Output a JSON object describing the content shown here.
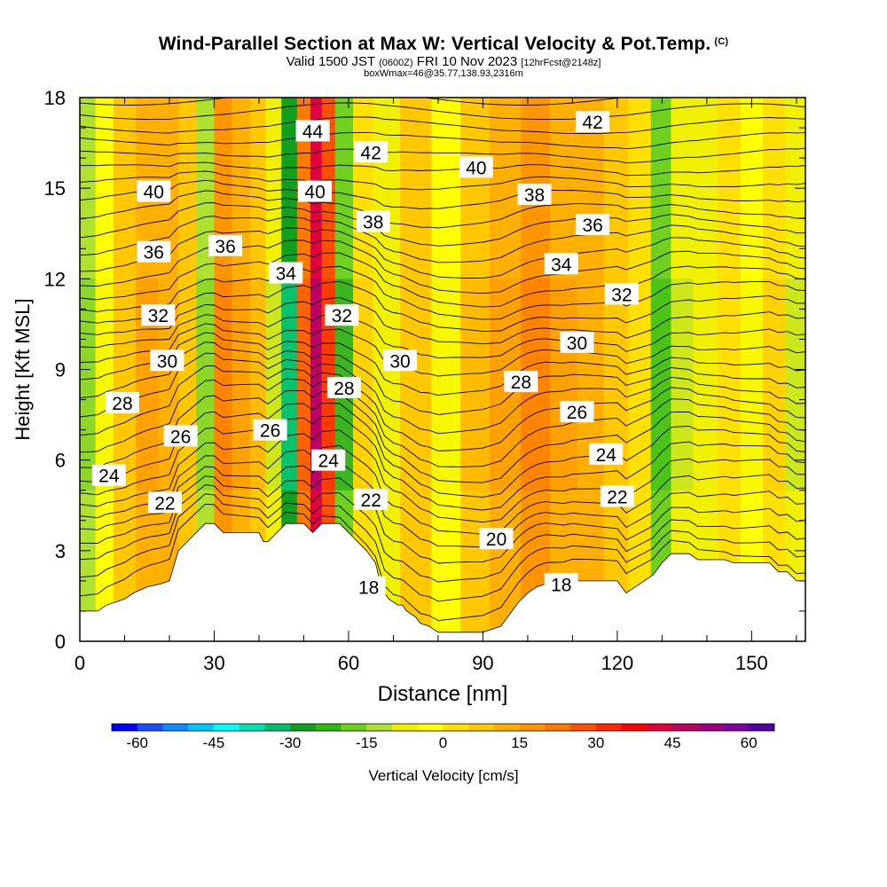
{
  "header": {
    "title": "Wind-Parallel Section at Max W: Vertical Velocity & Pot.Temp.",
    "copyright": "(C)",
    "valid_main": "Valid 1500 JST",
    "valid_utc": "(0600Z)",
    "valid_date": "FRI 10 Nov 2023",
    "forecast": "[12hrFcst@2148z]",
    "subtitle2": "boxWmax=46@35.77,138.93,2316m"
  },
  "chart_data": {
    "type": "heatmap",
    "xlabel": "Distance [nm]",
    "ylabel": "Height [Kft MSL]",
    "xlim": [
      0,
      162
    ],
    "ylim": [
      0,
      18
    ],
    "x_ticks": [
      0,
      30,
      60,
      90,
      120,
      150
    ],
    "y_ticks": [
      0,
      3,
      6,
      9,
      12,
      15,
      18
    ],
    "colorbar": {
      "label": "Vertical Velocity [cm/s]",
      "min": -65,
      "max": 65,
      "step": 5,
      "ticks": [
        -60,
        -45,
        -30,
        -15,
        0,
        15,
        30,
        45,
        60
      ],
      "colors": [
        "#0000ff",
        "#1a4cff",
        "#0c8cff",
        "#00c8ff",
        "#00ffff",
        "#00e0b0",
        "#00c070",
        "#10a020",
        "#30b810",
        "#70d020",
        "#b0e030",
        "#f0f000",
        "#ffff00",
        "#ffe000",
        "#ffc800",
        "#ffb000",
        "#ff9600",
        "#ff7800",
        "#ff5000",
        "#ff2800",
        "#ff0000",
        "#e00040",
        "#c00060",
        "#a00080",
        "#8000a0",
        "#5000a0"
      ]
    },
    "wmax": 46,
    "wmax_location": "35.77,138.93,2316m",
    "terrain": {
      "x": [
        0,
        4,
        6,
        8,
        10,
        12,
        15,
        18,
        20,
        21,
        22,
        24,
        26,
        28,
        30,
        32,
        34,
        36,
        38,
        40,
        41,
        42,
        44,
        46,
        48,
        50,
        52,
        54,
        56,
        58,
        60,
        62,
        64,
        66,
        67,
        68,
        69,
        70,
        71,
        72,
        73,
        74,
        75,
        76,
        78,
        80,
        82,
        84,
        86,
        88,
        90,
        92,
        94,
        96,
        98,
        100,
        102,
        104,
        106,
        108,
        110,
        112,
        114,
        116,
        118,
        120,
        122,
        124,
        126,
        128,
        130,
        132,
        134,
        136,
        138,
        140,
        142,
        144,
        146,
        148,
        150,
        152,
        154,
        156,
        158,
        160,
        162
      ],
      "y": [
        1.0,
        1.0,
        1.2,
        1.3,
        1.4,
        1.6,
        1.8,
        1.9,
        2.0,
        2.5,
        3.0,
        3.3,
        3.6,
        3.9,
        3.9,
        3.6,
        3.6,
        3.6,
        3.6,
        3.6,
        3.3,
        3.3,
        3.6,
        3.9,
        3.9,
        3.9,
        3.6,
        3.9,
        3.9,
        3.9,
        3.6,
        3.3,
        3.0,
        2.6,
        2.0,
        1.6,
        1.4,
        1.3,
        1.2,
        1.2,
        1.0,
        0.9,
        0.8,
        0.6,
        0.5,
        0.3,
        0.3,
        0.3,
        0.3,
        0.3,
        0.3,
        0.4,
        0.5,
        0.9,
        1.3,
        1.6,
        1.8,
        1.9,
        1.9,
        1.9,
        2.0,
        2.0,
        2.0,
        2.0,
        2.0,
        2.0,
        1.6,
        1.8,
        2.0,
        2.2,
        2.6,
        2.9,
        2.9,
        2.9,
        2.7,
        2.7,
        2.7,
        2.7,
        2.6,
        2.6,
        2.6,
        2.6,
        2.6,
        2.3,
        2.3,
        2.0,
        2.0
      ]
    },
    "w_field": {
      "columns": [
        {
          "x": 2,
          "w": -12
        },
        {
          "x": 5,
          "w": -4
        },
        {
          "x": 10,
          "w": 6
        },
        {
          "x": 15,
          "w": 12
        },
        {
          "x": 20,
          "w": 10
        },
        {
          "x": 24,
          "w": 6
        },
        {
          "x": 28,
          "w": -14
        },
        {
          "x": 32,
          "w": 18
        },
        {
          "x": 36,
          "w": 12
        },
        {
          "x": 40,
          "w": 8
        },
        {
          "x": 43,
          "w": -8
        },
        {
          "x": 47,
          "w": -30
        },
        {
          "x": 50,
          "w": 20
        },
        {
          "x": 53,
          "w": 42
        },
        {
          "x": 55,
          "w": 26
        },
        {
          "x": 59,
          "w": -20
        },
        {
          "x": 63,
          "w": 4
        },
        {
          "x": 68,
          "w": -6
        },
        {
          "x": 75,
          "w": 6
        },
        {
          "x": 82,
          "w": -4
        },
        {
          "x": 88,
          "w": 8
        },
        {
          "x": 95,
          "w": 12
        },
        {
          "x": 102,
          "w": 16
        },
        {
          "x": 108,
          "w": 14
        },
        {
          "x": 114,
          "w": 10
        },
        {
          "x": 120,
          "w": 6
        },
        {
          "x": 125,
          "w": 2
        },
        {
          "x": 130,
          "w": -16
        },
        {
          "x": 134,
          "w": -10
        },
        {
          "x": 140,
          "w": -6
        },
        {
          "x": 145,
          "w": 2
        },
        {
          "x": 150,
          "w": -4
        },
        {
          "x": 155,
          "w": 4
        },
        {
          "x": 160,
          "w": -8
        }
      ]
    },
    "theta_contours": [
      {
        "level": 18,
        "label": "18",
        "label_x": 64.5,
        "label_y": 1.8
      },
      {
        "level": 18,
        "label": "18",
        "label_x": 107.5,
        "label_y": 1.9
      },
      {
        "level": 20,
        "label": "20",
        "label_x": 93,
        "label_y": 3.4
      },
      {
        "level": 22,
        "label": "22",
        "label_x": 19,
        "label_y": 4.6
      },
      {
        "level": 22,
        "label": "22",
        "label_x": 65,
        "label_y": 4.7
      },
      {
        "level": 22,
        "label": "22",
        "label_x": 120,
        "label_y": 4.8
      },
      {
        "level": 24,
        "label": "24",
        "label_x": 6.5,
        "label_y": 5.5
      },
      {
        "level": 24,
        "label": "24",
        "label_x": 55.5,
        "label_y": 6.0
      },
      {
        "level": 24,
        "label": "24",
        "label_x": 117.5,
        "label_y": 6.2
      },
      {
        "level": 26,
        "label": "26",
        "label_x": 22.5,
        "label_y": 6.8
      },
      {
        "level": 26,
        "label": "26",
        "label_x": 42.5,
        "label_y": 7.0
      },
      {
        "level": 26,
        "label": "26",
        "label_x": 111,
        "label_y": 7.6
      },
      {
        "level": 28,
        "label": "28",
        "label_x": 9.5,
        "label_y": 7.9
      },
      {
        "level": 28,
        "label": "28",
        "label_x": 59,
        "label_y": 8.4
      },
      {
        "level": 28,
        "label": "28",
        "label_x": 98.5,
        "label_y": 8.6
      },
      {
        "level": 30,
        "label": "30",
        "label_x": 19.5,
        "label_y": 9.3
      },
      {
        "level": 30,
        "label": "30",
        "label_x": 71.5,
        "label_y": 9.3
      },
      {
        "level": 30,
        "label": "30",
        "label_x": 111,
        "label_y": 9.9
      },
      {
        "level": 32,
        "label": "32",
        "label_x": 17.5,
        "label_y": 10.8
      },
      {
        "level": 32,
        "label": "32",
        "label_x": 58.5,
        "label_y": 10.8
      },
      {
        "level": 32,
        "label": "32",
        "label_x": 121,
        "label_y": 11.5
      },
      {
        "level": 34,
        "label": "34",
        "label_x": 46,
        "label_y": 12.2
      },
      {
        "level": 34,
        "label": "34",
        "label_x": 107.5,
        "label_y": 12.5
      },
      {
        "level": 36,
        "label": "36",
        "label_x": 16.5,
        "label_y": 12.9
      },
      {
        "level": 36,
        "label": "36",
        "label_x": 32.5,
        "label_y": 13.1
      },
      {
        "level": 36,
        "label": "36",
        "label_x": 114.5,
        "label_y": 13.8
      },
      {
        "level": 38,
        "label": "38",
        "label_x": 65.5,
        "label_y": 13.9
      },
      {
        "level": 38,
        "label": "38",
        "label_x": 101.5,
        "label_y": 14.8
      },
      {
        "level": 40,
        "label": "40",
        "label_x": 16.5,
        "label_y": 14.9
      },
      {
        "level": 40,
        "label": "40",
        "label_x": 52.5,
        "label_y": 14.9
      },
      {
        "level": 40,
        "label": "40",
        "label_x": 88.5,
        "label_y": 15.7
      },
      {
        "level": 42,
        "label": "42",
        "label_x": 65,
        "label_y": 16.2
      },
      {
        "level": 42,
        "label": "42",
        "label_x": 114.5,
        "label_y": 17.2
      },
      {
        "level": 44,
        "label": "44",
        "label_x": 52,
        "label_y": 16.9
      }
    ]
  }
}
